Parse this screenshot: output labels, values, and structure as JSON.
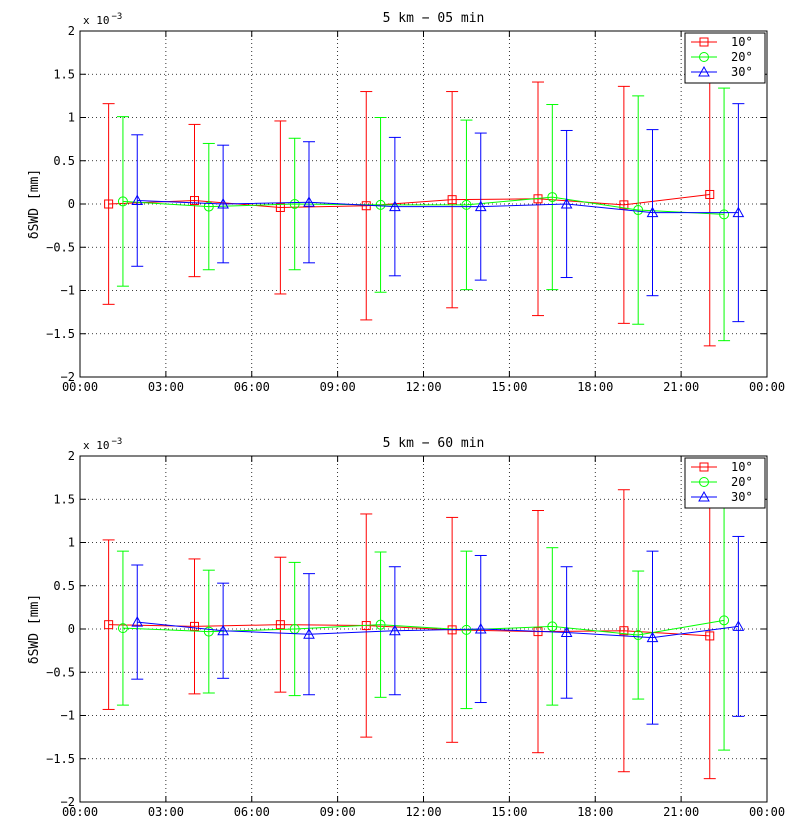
{
  "chart_data": [
    {
      "type": "line",
      "title": "5 km − 05 min",
      "ylabel": "δSWD  [mm]",
      "exponent_label": "x 10",
      "exponent_power": "−3",
      "ylim": [
        -2,
        2
      ],
      "yticks": [
        -2,
        -1.5,
        -1,
        -0.5,
        0,
        0.5,
        1,
        1.5,
        2
      ],
      "ytick_labels": [
        "−2",
        "−1.5",
        "−1",
        "−0.5",
        "0",
        "0.5",
        "1",
        "1.5",
        "2"
      ],
      "xlim": [
        0,
        24
      ],
      "xticks": [
        0,
        3,
        6,
        9,
        12,
        15,
        18,
        21,
        24
      ],
      "xtick_labels": [
        "00:00",
        "03:00",
        "06:00",
        "09:00",
        "12:00",
        "15:00",
        "18:00",
        "21:00",
        "00:00"
      ],
      "grid": true,
      "legend_position": "top-right",
      "series": [
        {
          "name": "10°",
          "color": "#ff0000",
          "marker": "square",
          "x": [
            1,
            4,
            7,
            10,
            13,
            16,
            19,
            22
          ],
          "y": [
            0.0,
            0.04,
            -0.04,
            -0.02,
            0.05,
            0.06,
            -0.01,
            0.11
          ],
          "err": [
            1.16,
            0.88,
            1.0,
            1.32,
            1.25,
            1.35,
            1.37,
            1.75
          ]
        },
        {
          "name": "20°",
          "color": "#00ff00",
          "marker": "circle",
          "x": [
            1.5,
            4.5,
            7.5,
            10.5,
            13.5,
            16.5,
            19.5,
            22.5
          ],
          "y": [
            0.03,
            -0.03,
            0.0,
            -0.01,
            -0.01,
            0.08,
            -0.07,
            -0.12
          ],
          "err": [
            0.98,
            0.73,
            0.76,
            1.01,
            0.98,
            1.07,
            1.32,
            1.46
          ]
        },
        {
          "name": "30°",
          "color": "#0000ff",
          "marker": "triangle",
          "x": [
            2,
            5,
            8,
            11,
            14,
            17,
            20,
            23
          ],
          "y": [
            0.04,
            0.0,
            0.02,
            -0.03,
            -0.03,
            0.0,
            -0.1,
            -0.1
          ],
          "err": [
            0.76,
            0.68,
            0.7,
            0.8,
            0.85,
            0.85,
            0.96,
            1.26
          ]
        }
      ]
    },
    {
      "type": "line",
      "title": "5 km − 60 min",
      "ylabel": "δSWD  [mm]",
      "exponent_label": "x 10",
      "exponent_power": "−3",
      "ylim": [
        -2,
        2
      ],
      "yticks": [
        -2,
        -1.5,
        -1,
        -0.5,
        0,
        0.5,
        1,
        1.5,
        2
      ],
      "ytick_labels": [
        "−2",
        "−1.5",
        "−1",
        "−0.5",
        "0",
        "0.5",
        "1",
        "1.5",
        "2"
      ],
      "xlim": [
        0,
        24
      ],
      "xticks": [
        0,
        3,
        6,
        9,
        12,
        15,
        18,
        21,
        24
      ],
      "xtick_labels": [
        "00:00",
        "03:00",
        "06:00",
        "09:00",
        "12:00",
        "15:00",
        "18:00",
        "21:00",
        "00:00"
      ],
      "grid": true,
      "legend_position": "top-right",
      "series": [
        {
          "name": "10°",
          "color": "#ff0000",
          "marker": "square",
          "x": [
            1,
            4,
            7,
            10,
            13,
            16,
            19,
            22
          ],
          "y": [
            0.05,
            0.03,
            0.05,
            0.04,
            -0.01,
            -0.03,
            -0.02,
            -0.08
          ],
          "err": [
            0.98,
            0.78,
            0.78,
            1.29,
            1.3,
            1.4,
            1.63,
            1.65
          ]
        },
        {
          "name": "20°",
          "color": "#00ff00",
          "marker": "circle",
          "x": [
            1.5,
            4.5,
            7.5,
            10.5,
            13.5,
            16.5,
            19.5,
            22.5
          ],
          "y": [
            0.01,
            -0.03,
            0.0,
            0.05,
            -0.01,
            0.03,
            -0.07,
            0.1
          ],
          "err": [
            0.89,
            0.71,
            0.77,
            0.84,
            0.91,
            0.91,
            0.74,
            1.5
          ]
        },
        {
          "name": "30°",
          "color": "#0000ff",
          "marker": "triangle",
          "x": [
            2,
            5,
            8,
            11,
            14,
            17,
            20,
            23
          ],
          "y": [
            0.08,
            -0.02,
            -0.06,
            -0.02,
            0.0,
            -0.04,
            -0.1,
            0.03
          ],
          "err": [
            0.66,
            0.55,
            0.7,
            0.74,
            0.85,
            0.76,
            1.0,
            1.04
          ]
        }
      ]
    }
  ]
}
